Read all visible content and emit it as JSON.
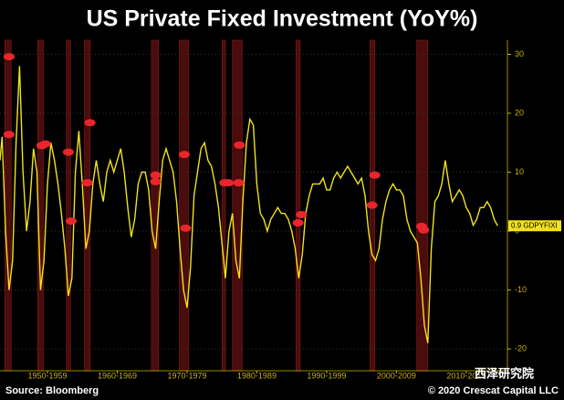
{
  "chart_data": {
    "type": "line",
    "title": "US Private Fixed Investment (YoY%)",
    "source": "Source: Bloomberg",
    "copyright": "© 2020 Crescat Capital LLC",
    "watermark": "西泽研究院",
    "end_label": "0.9 GDPYFIXI",
    "xlim": [
      1948.2,
      2020.9
    ],
    "ylim": [
      -23.7,
      32.4
    ],
    "yticks": [
      30,
      20,
      10,
      0,
      -10,
      -20
    ],
    "xticks": [
      {
        "value": 1955,
        "label": "1950-1959"
      },
      {
        "value": 1965,
        "label": "1960-1969"
      },
      {
        "value": 1975,
        "label": "1970-1979"
      },
      {
        "value": 1985,
        "label": "1980-1989"
      },
      {
        "value": 1995,
        "label": "1990-1999"
      },
      {
        "value": 2005,
        "label": "2000-2009"
      },
      {
        "value": 2015,
        "label": "2010-2019"
      }
    ],
    "grid": true,
    "shaded_ranges": [
      [
        1948.9,
        1949.8
      ],
      [
        1953.6,
        1954.4
      ],
      [
        1957.7,
        1958.3
      ],
      [
        1960.3,
        1961.1
      ],
      [
        1969.9,
        1970.9
      ],
      [
        1973.9,
        1975.2
      ],
      [
        1980.0,
        1980.5
      ],
      [
        1981.5,
        1982.9
      ],
      [
        1990.6,
        1991.2
      ],
      [
        2001.2,
        2001.9
      ],
      [
        2007.9,
        2009.5
      ]
    ],
    "shade_color": "#4a0c0c",
    "markers": {
      "color": "#e8262b",
      "x": [
        1949.5,
        1949.5,
        1954.2,
        1954.7,
        1958.0,
        1958.4,
        1960.7,
        1961.1,
        1970.5,
        1970.5,
        1974.6,
        1974.8,
        1980.4,
        1980.9,
        1982.4,
        1982.5,
        1990.9,
        1991.4,
        2001.5,
        2001.9,
        2008.6,
        2008.9
      ],
      "y": [
        29.6,
        16.4,
        14.5,
        14.8,
        13.4,
        1.7,
        8.2,
        18.4,
        9.5,
        8.4,
        13.0,
        0.5,
        8.2,
        8.2,
        8.2,
        14.6,
        1.4,
        2.8,
        4.4,
        9.5,
        0.8,
        0.2
      ]
    },
    "series": [
      {
        "name": "GDPYFIXI",
        "color": "#f2e21a",
        "x": [
          1948.2,
          1948.5,
          1949.0,
          1949.5,
          1950.0,
          1950.5,
          1951.0,
          1951.5,
          1952.0,
          1952.5,
          1953.0,
          1953.5,
          1954.0,
          1954.5,
          1955.0,
          1955.5,
          1956.0,
          1956.5,
          1957.0,
          1957.5,
          1958.0,
          1958.5,
          1959.0,
          1959.5,
          1960.0,
          1960.5,
          1961.0,
          1961.5,
          1962.0,
          1962.5,
          1963.0,
          1963.5,
          1964.0,
          1964.5,
          1965.0,
          1965.5,
          1966.0,
          1966.5,
          1967.0,
          1967.5,
          1968.0,
          1968.5,
          1969.0,
          1969.5,
          1970.0,
          1970.5,
          1971.0,
          1971.5,
          1972.0,
          1972.5,
          1973.0,
          1973.5,
          1974.0,
          1974.5,
          1975.0,
          1975.5,
          1976.0,
          1976.5,
          1977.0,
          1977.5,
          1978.0,
          1978.5,
          1979.0,
          1979.5,
          1980.0,
          1980.5,
          1981.0,
          1981.5,
          1982.0,
          1982.5,
          1983.0,
          1983.5,
          1984.0,
          1984.5,
          1985.0,
          1985.5,
          1986.0,
          1986.5,
          1987.0,
          1987.5,
          1988.0,
          1988.5,
          1989.0,
          1989.5,
          1990.0,
          1990.5,
          1991.0,
          1991.5,
          1992.0,
          1992.5,
          1993.0,
          1993.5,
          1994.0,
          1994.5,
          1995.0,
          1995.5,
          1996.0,
          1996.5,
          1997.0,
          1997.5,
          1998.0,
          1998.5,
          1999.0,
          1999.5,
          2000.0,
          2000.5,
          2001.0,
          2001.5,
          2002.0,
          2002.5,
          2003.0,
          2003.5,
          2004.0,
          2004.5,
          2005.0,
          2005.5,
          2006.0,
          2006.5,
          2007.0,
          2007.5,
          2008.0,
          2008.5,
          2009.0,
          2009.5,
          2010.0,
          2010.5,
          2011.0,
          2011.5,
          2012.0,
          2012.5,
          2013.0,
          2013.5,
          2014.0,
          2014.5,
          2015.0,
          2015.5,
          2016.0,
          2016.5,
          2017.0,
          2017.5,
          2018.0,
          2018.5,
          2019.0,
          2019.5
        ],
        "values": [
          12,
          16,
          0,
          -10,
          -5,
          15,
          28,
          10,
          0,
          5,
          14,
          10,
          -10,
          -5,
          8,
          15,
          12,
          8,
          3,
          -3,
          -11,
          -8,
          10,
          17,
          8,
          -3,
          0,
          8,
          12,
          8,
          5,
          10,
          12,
          10,
          12,
          14,
          10,
          4,
          -1,
          2,
          8,
          10,
          10,
          7,
          0,
          -3,
          5,
          12,
          14,
          12,
          10,
          5,
          -3,
          -10,
          -13,
          -6,
          6,
          10,
          14,
          15,
          12,
          11,
          8,
          4,
          -2,
          -8,
          0,
          3,
          -5,
          -8,
          5,
          15,
          19,
          18,
          8,
          3,
          2,
          0,
          2,
          3,
          4,
          3,
          3,
          2,
          0,
          -3,
          -8,
          -4,
          3,
          6,
          8,
          8,
          8,
          9,
          7,
          7,
          9,
          10,
          9,
          10,
          11,
          10,
          9,
          8,
          9,
          6,
          0,
          -4,
          -5,
          -3,
          2,
          5,
          7,
          8,
          7,
          7,
          6,
          2,
          0,
          -1,
          -2,
          -8,
          -16,
          -19,
          -3,
          5,
          6,
          8,
          12,
          8,
          5,
          6,
          7,
          6,
          4,
          3,
          1,
          2,
          4,
          4,
          5,
          4,
          2,
          0.9
        ]
      }
    ]
  }
}
